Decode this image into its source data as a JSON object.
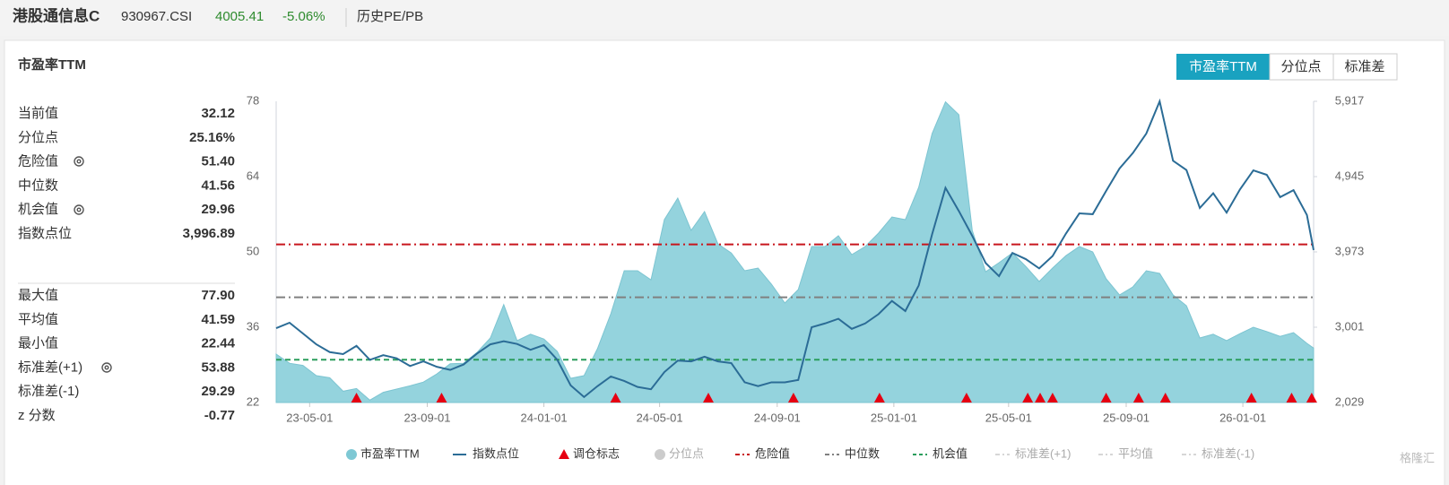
{
  "header": {
    "name": "港股通信息C",
    "code": "930967.CSI",
    "price": "4005.41",
    "change": "-5.06%",
    "link": "历史PE/PB"
  },
  "panel": {
    "title": "市盈率TTM",
    "tabs": [
      "市盈率TTM",
      "分位点",
      "标准差"
    ]
  },
  "stats": {
    "current": [
      [
        "当前值",
        "32.12"
      ],
      [
        "分位点",
        "25.16%"
      ],
      [
        "危险值",
        "51.40"
      ],
      [
        "中位数",
        "41.56"
      ],
      [
        "机会值",
        "29.96"
      ],
      [
        "指数点位",
        "3,996.89"
      ]
    ],
    "history": [
      [
        "最大值",
        "77.90"
      ],
      [
        "平均值",
        "41.59"
      ],
      [
        "最小值",
        "22.44"
      ],
      [
        "标准差(+1)",
        "53.88"
      ],
      [
        "标准差(-1)",
        "29.29"
      ],
      [
        "z 分数",
        "-0.77"
      ]
    ]
  },
  "watermark": "格隆汇",
  "chart_data": {
    "type": "line",
    "x": [
      "23-03-27",
      "23-04-10",
      "23-04-24",
      "23-05-08",
      "23-05-22",
      "23-06-05",
      "23-06-19",
      "23-07-03",
      "23-07-17",
      "23-07-31",
      "23-08-14",
      "23-08-28",
      "23-09-11",
      "23-09-25",
      "23-10-09",
      "23-10-23",
      "23-11-06",
      "23-11-20",
      "23-12-04",
      "23-12-18",
      "24-01-01",
      "24-01-15",
      "24-01-29",
      "24-02-12",
      "24-02-26",
      "24-03-11",
      "24-03-25",
      "24-04-08",
      "24-04-22",
      "24-05-06",
      "24-05-20",
      "24-06-03",
      "24-06-17",
      "24-07-01",
      "24-07-15",
      "24-07-29",
      "24-08-12",
      "24-08-26",
      "24-09-09",
      "24-09-23",
      "24-10-07",
      "24-10-21",
      "24-11-04",
      "24-11-18",
      "24-12-02",
      "24-12-16",
      "24-12-30",
      "25-01-13",
      "25-01-27",
      "25-02-10",
      "25-02-24",
      "25-03-10",
      "25-03-24",
      "25-04-07",
      "25-04-21",
      "25-05-05",
      "25-05-19",
      "25-06-02",
      "25-06-16",
      "25-06-30",
      "25-07-14",
      "25-07-28",
      "25-08-11",
      "25-08-25",
      "25-09-08",
      "25-09-22",
      "25-10-06",
      "25-10-20",
      "25-11-03",
      "25-11-17",
      "25-12-01",
      "25-12-15",
      "25-12-29",
      "26-01-12",
      "26-01-26",
      "26-02-09",
      "26-02-23",
      "26-03-09",
      "26-03-16"
    ],
    "series": [
      {
        "name": "市盈率TTM",
        "type": "area",
        "color": "#94d3dd",
        "values": [
          31,
          29.3,
          28.9,
          27,
          26.6,
          24.1,
          24.6,
          22.44,
          23.9,
          24.5,
          25.1,
          25.8,
          27.3,
          29.2,
          29.3,
          31.3,
          34,
          40.2,
          33.5,
          34.7,
          33.8,
          31.5,
          26.5,
          27,
          32,
          38.5,
          46.5,
          46.5,
          44.8,
          56,
          60,
          54,
          57.5,
          51.5,
          49.8,
          46.5,
          47,
          44,
          40.5,
          43,
          51,
          51,
          53,
          49.5,
          51,
          53.5,
          56.5,
          56,
          62,
          72,
          77.9,
          75.5,
          54,
          46.3,
          48,
          49.8,
          47.3,
          44.5,
          47,
          49.3,
          51,
          50,
          45,
          42,
          43.5,
          46.5,
          46,
          42,
          40,
          34,
          34.7,
          33.5,
          34.8,
          36,
          35.2,
          34.3,
          35,
          33,
          32.12
        ]
      },
      {
        "name": "指数点位",
        "type": "line",
        "color": "#2b6c96",
        "axis": "y2",
        "values": [
          2989,
          3059,
          2920,
          2780,
          2680,
          2654,
          2760,
          2580,
          2640,
          2600,
          2500,
          2560,
          2490,
          2450,
          2520,
          2660,
          2780,
          2820,
          2785,
          2710,
          2770,
          2580,
          2250,
          2100,
          2240,
          2365,
          2307,
          2230,
          2200,
          2422,
          2570,
          2560,
          2620,
          2560,
          2538,
          2290,
          2240,
          2290,
          2290,
          2320,
          3000,
          3050,
          3110,
          2980,
          3050,
          3170,
          3340,
          3210,
          3540,
          4200,
          4800,
          4500,
          4180,
          3830,
          3660,
          3960,
          3880,
          3760,
          3920,
          4210,
          4470,
          4460,
          4760,
          5050,
          5250,
          5500,
          5917,
          5150,
          5030,
          4540,
          4730,
          4480,
          4780,
          5026,
          4968,
          4680,
          4770,
          4450,
          3996.89
        ]
      }
    ],
    "markers": {
      "name": "调仓标志",
      "color": "#e60012",
      "x": [
        "23-06-19",
        "23-09-16",
        "24-03-16",
        "24-06-21",
        "24-09-18",
        "24-12-17",
        "25-03-18",
        "25-05-21",
        "25-06-03",
        "25-06-16",
        "25-08-11",
        "25-09-14",
        "25-10-12",
        "26-01-10",
        "26-02-21",
        "26-03-14"
      ]
    },
    "percentile": {
      "name": "分位点",
      "color": "#cccccc",
      "visible": false
    },
    "reference_lines": [
      {
        "name": "危险值",
        "value": 51.4,
        "color": "#c8161d",
        "dash": "dashdot",
        "visible": true
      },
      {
        "name": "中位数",
        "value": 41.56,
        "color": "#808080",
        "dash": "dashdot",
        "visible": true
      },
      {
        "name": "机会值",
        "value": 29.96,
        "color": "#2a9d5c",
        "dash": "dashed",
        "visible": true
      },
      {
        "name": "标准差(+1)",
        "color": "#d6d6d6",
        "dash": "dashdot",
        "visible": false
      },
      {
        "name": "平均值",
        "color": "#d6d6d6",
        "dash": "dashdot",
        "visible": false
      },
      {
        "name": "标准差(-1)",
        "color": "#d6d6d6",
        "dash": "dashdot",
        "visible": false
      }
    ],
    "xlim": [
      "23-03-27",
      "26-03-16"
    ],
    "xticks": [
      "23-05-01",
      "23-09-01",
      "24-01-01",
      "24-05-01",
      "24-09-01",
      "25-01-01",
      "25-05-01",
      "25-09-01",
      "26-01-01"
    ],
    "ylim": [
      22,
      78
    ],
    "yticks": [
      22,
      36,
      50,
      64,
      78
    ],
    "y2lim": [
      2029,
      5917
    ],
    "y2ticks": [
      {
        "value": 2029,
        "label": "2,029"
      },
      {
        "value": 3001,
        "label": "3,001"
      },
      {
        "value": 3973,
        "label": "3,973"
      },
      {
        "value": 4945,
        "label": "4,945"
      },
      {
        "value": 5917,
        "label": "5,917"
      }
    ],
    "grid": false
  }
}
